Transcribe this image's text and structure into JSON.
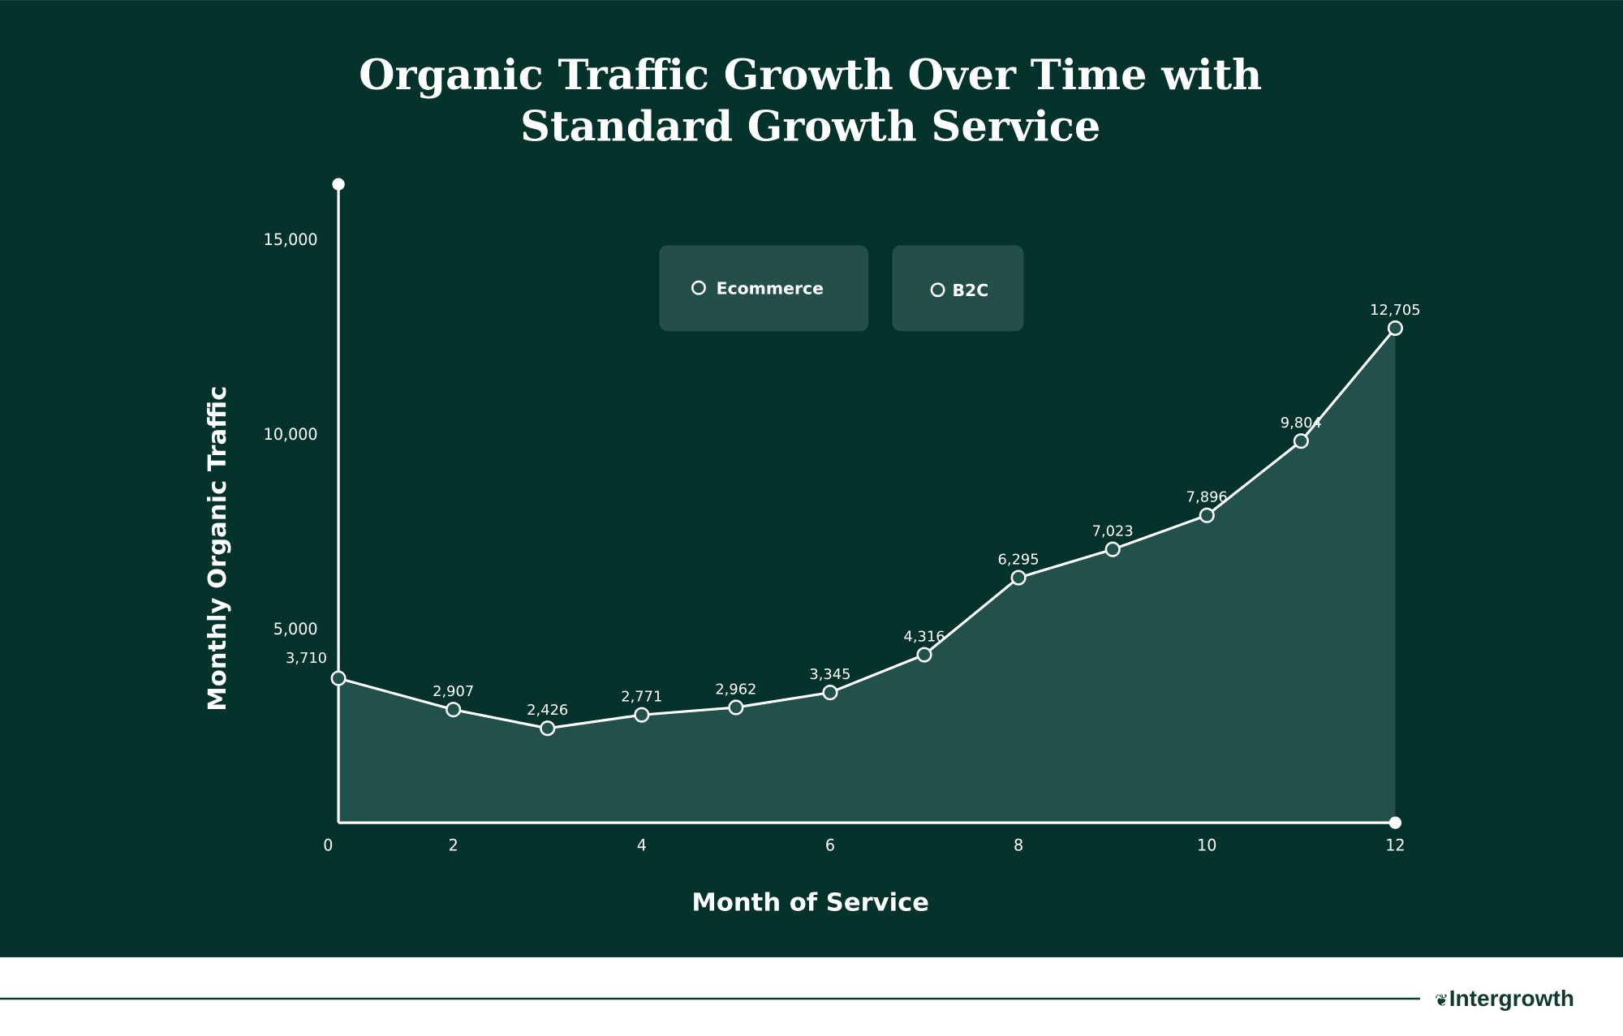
{
  "chart_data": {
    "type": "area",
    "title_lines": [
      "Organic Traffic Growth Over Time with",
      "Standard Growth Service"
    ],
    "xlabel": "Month of Service",
    "ylabel": "Monthly Organic Traffic",
    "x_ticks": [
      0,
      2,
      4,
      6,
      8,
      10,
      12
    ],
    "y_ticks": [
      5000,
      10000,
      15000
    ],
    "y_tick_labels": [
      "5,000",
      "10,000",
      "15,000"
    ],
    "ylim": [
      0,
      16400
    ],
    "xlim": [
      0,
      12
    ],
    "grid": false,
    "legend": [
      "Ecommerce",
      "B2C"
    ],
    "legend_placement": "top-center",
    "x": [
      0,
      2,
      3,
      4,
      5,
      6,
      7,
      8,
      9,
      10,
      11,
      12
    ],
    "values": [
      3710,
      2907,
      2426,
      2771,
      2962,
      3345,
      4316,
      6295,
      7023,
      7896,
      9804,
      12705
    ],
    "value_labels": [
      "3,710",
      "2,907",
      "2,426",
      "2,771",
      "2,962",
      "3,345",
      "4,316",
      "6,295",
      "7,023",
      "7,896",
      "9,804",
      "12,705"
    ],
    "colors": {
      "background": "#02322a",
      "area": "#22504a",
      "line": "#ffffff",
      "legend_box": "#244f48"
    }
  },
  "footer": {
    "brand": "Intergrowth",
    "brand_color": "#0e3a2f"
  }
}
